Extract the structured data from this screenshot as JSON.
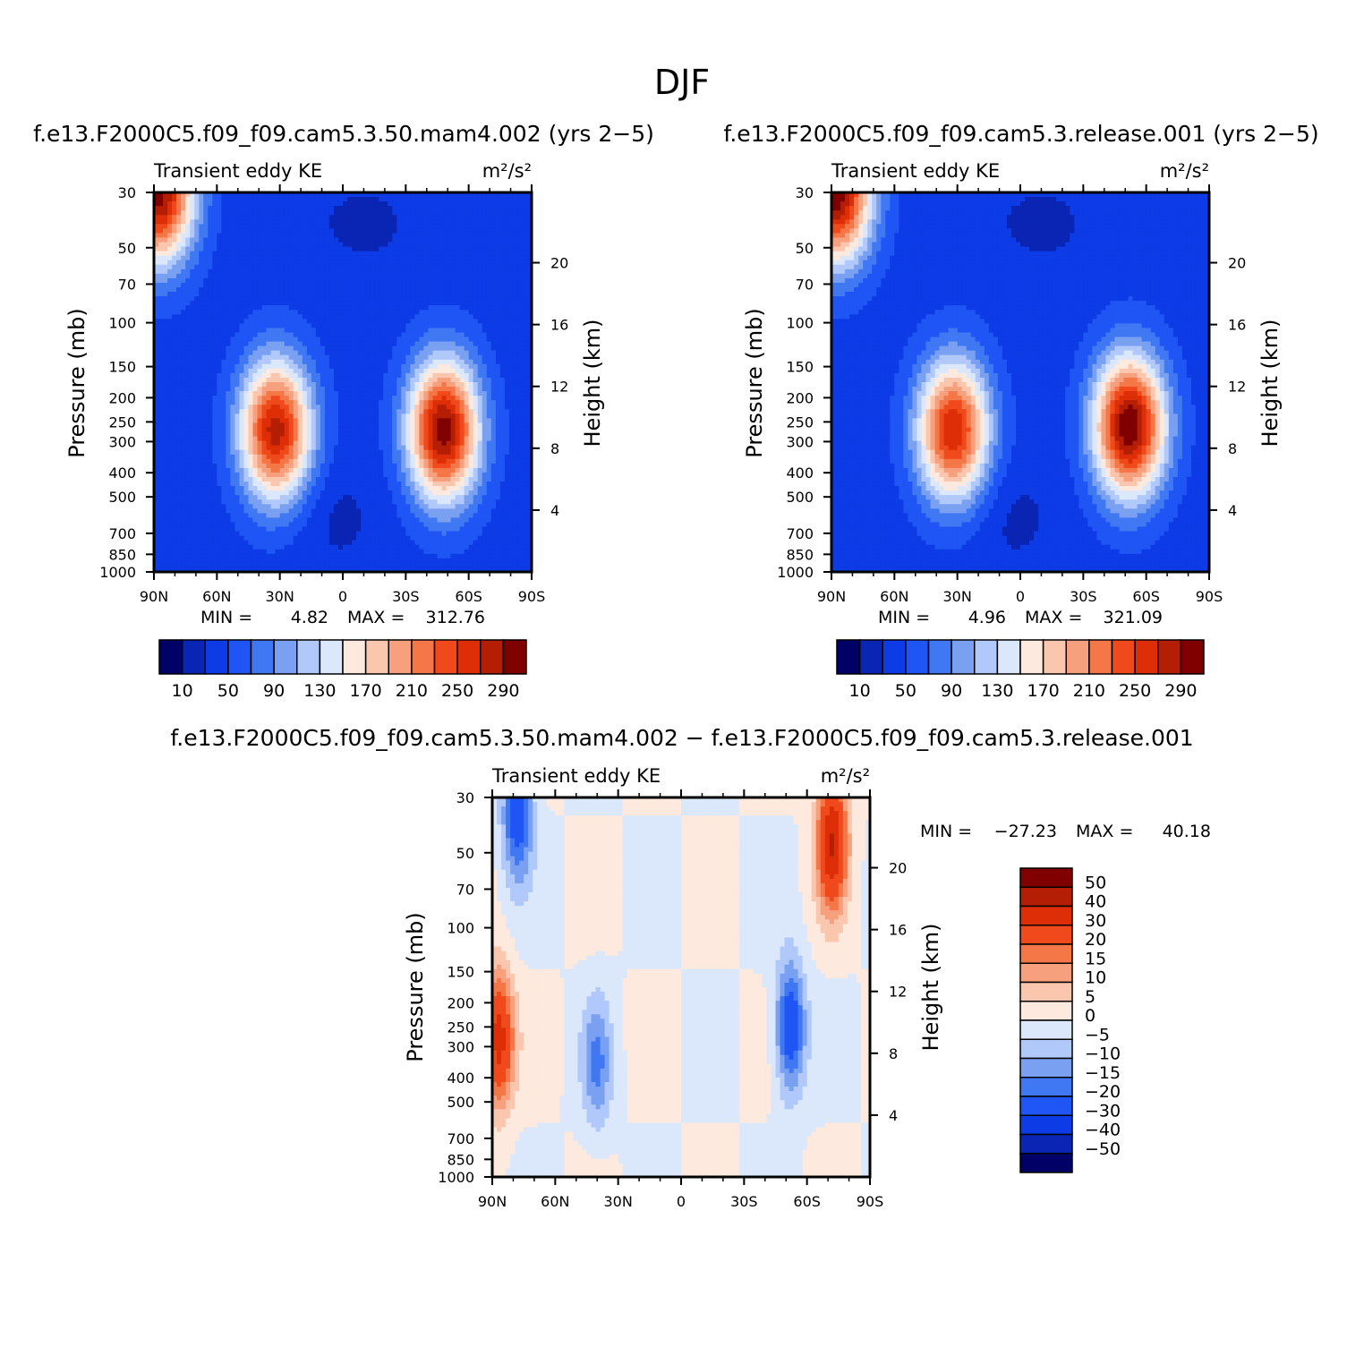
{
  "figure": {
    "title": "DJF"
  },
  "chart_data": [
    {
      "type": "heatmap",
      "panel_title": "f.e13.F2000C5.f09_f09.cam5.3.50.mam4.002 (yrs 2−5)",
      "title": "Transient eddy KE",
      "units": "m²/s²",
      "xlabel": "",
      "ylabel": "Pressure (mb)",
      "ylabel_right": "Height (km)",
      "x_ticks": [
        "90N",
        "60N",
        "30N",
        "0",
        "30S",
        "60S",
        "90S"
      ],
      "y_ticks": [
        "30",
        "50",
        "70",
        "100",
        "150",
        "200",
        "250",
        "300",
        "400",
        "500",
        "700",
        "850",
        "1000"
      ],
      "right_ticks": [
        "20",
        "16",
        "12",
        "8",
        "4"
      ],
      "min_label": "MIN =",
      "min_value": "4.82",
      "max_label": "MAX =",
      "max_value": "312.76",
      "colorbar_labels": [
        "10",
        "50",
        "90",
        "130",
        "170",
        "210",
        "250",
        "290"
      ],
      "levels": [
        10,
        30,
        50,
        70,
        90,
        110,
        130,
        150,
        170,
        190,
        210,
        230,
        250,
        270,
        290
      ],
      "features": [
        {
          "lat": -48,
          "p": 270,
          "value": 300
        },
        {
          "lat": 32,
          "p": 270,
          "value": 280
        },
        {
          "lat": 88,
          "p": 30,
          "value": 300
        }
      ]
    },
    {
      "type": "heatmap",
      "panel_title": "f.e13.F2000C5.f09_f09.cam5.3.release.001 (yrs 2−5)",
      "title": "Transient eddy KE",
      "units": "m²/s²",
      "xlabel": "",
      "ylabel": "Pressure (mb)",
      "ylabel_right": "Height (km)",
      "x_ticks": [
        "90N",
        "60N",
        "30N",
        "0",
        "30S",
        "60S",
        "90S"
      ],
      "y_ticks": [
        "30",
        "50",
        "70",
        "100",
        "150",
        "200",
        "250",
        "300",
        "400",
        "500",
        "700",
        "850",
        "1000"
      ],
      "right_ticks": [
        "20",
        "16",
        "12",
        "8",
        "4"
      ],
      "min_label": "MIN =",
      "min_value": "4.96",
      "max_label": "MAX =",
      "max_value": "321.09",
      "colorbar_labels": [
        "10",
        "50",
        "90",
        "130",
        "170",
        "210",
        "250",
        "290"
      ],
      "levels": [
        10,
        30,
        50,
        70,
        90,
        110,
        130,
        150,
        170,
        190,
        210,
        230,
        250,
        270,
        290
      ],
      "features": [
        {
          "lat": -52,
          "p": 260,
          "value": 310
        },
        {
          "lat": 32,
          "p": 270,
          "value": 270
        },
        {
          "lat": 88,
          "p": 30,
          "value": 305
        }
      ]
    },
    {
      "type": "heatmap",
      "panel_title": "f.e13.F2000C5.f09_f09.cam5.3.50.mam4.002 − f.e13.F2000C5.f09_f09.cam5.3.release.001",
      "title": "Transient eddy KE",
      "units": "m²/s²",
      "xlabel": "",
      "ylabel": "Pressure (mb)",
      "ylabel_right": "Height (km)",
      "x_ticks": [
        "90N",
        "60N",
        "30N",
        "0",
        "30S",
        "60S",
        "90S"
      ],
      "y_ticks": [
        "30",
        "50",
        "70",
        "100",
        "150",
        "200",
        "250",
        "300",
        "400",
        "500",
        "700",
        "850",
        "1000"
      ],
      "right_ticks": [
        "20",
        "16",
        "12",
        "8",
        "4"
      ],
      "min_label": "MIN =",
      "min_value": "−27.23",
      "max_label": "MAX =",
      "max_value": "40.18",
      "colorbar_labels": [
        "50",
        "40",
        "30",
        "20",
        "15",
        "10",
        "5",
        "0",
        "−5",
        "−10",
        "−15",
        "−20",
        "−30",
        "−40",
        "−50"
      ],
      "levels": [
        -50,
        -40,
        -30,
        -20,
        -15,
        -10,
        -5,
        0,
        5,
        10,
        15,
        20,
        30,
        40,
        50
      ],
      "features": [
        {
          "lat": 87,
          "p": 280,
          "value": 35
        },
        {
          "lat": -72,
          "p": 45,
          "value": 40
        },
        {
          "lat": 78,
          "p": 35,
          "value": -25
        },
        {
          "lat": -52,
          "p": 250,
          "value": -27
        },
        {
          "lat": 40,
          "p": 350,
          "value": -15
        }
      ]
    }
  ],
  "colormap": {
    "blue_red": [
      "#000066",
      "#0a24b4",
      "#0d3be6",
      "#1f55f5",
      "#3f78f2",
      "#7aa0f2",
      "#b0c8fa",
      "#dbe8fc",
      "#fde9de",
      "#fbc6ae",
      "#f7a07e",
      "#f47748",
      "#f04a1c",
      "#dd2e08",
      "#b31e05",
      "#800000"
    ]
  }
}
